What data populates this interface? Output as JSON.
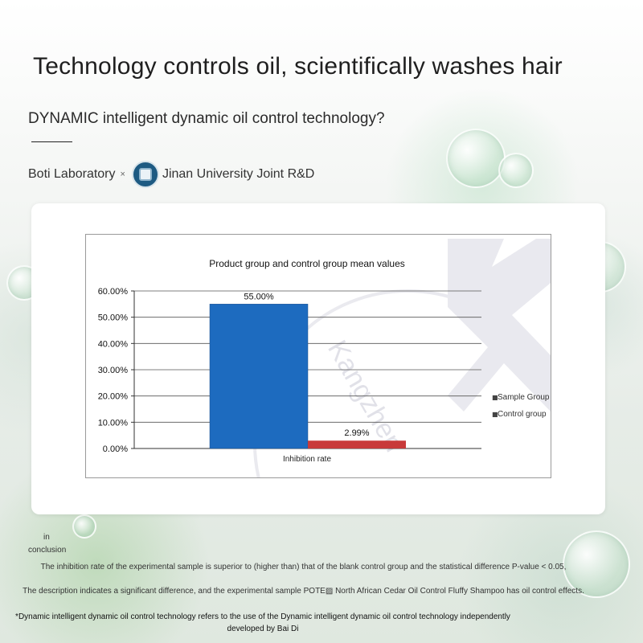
{
  "header": {
    "title": "Technology controls oil, scientifically washes hair",
    "subtitle": "DYNAMIC intelligent dynamic oil control technology?"
  },
  "lab": {
    "left": "Boti Laboratory",
    "separator": "×",
    "right": "Jinan University Joint R&D"
  },
  "chart_data": {
    "type": "bar",
    "title": "Product group and control group mean values",
    "categories": [
      "Inhibition rate"
    ],
    "series": [
      {
        "name": "Sample Group",
        "values": [
          55.0
        ],
        "color": "#1d6bbf",
        "label": "55.00%"
      },
      {
        "name": "Control group",
        "values": [
          2.99
        ],
        "color": "#c83a3a",
        "label": "2.99%"
      }
    ],
    "yticks": [
      "0.00%",
      "10.00%",
      "20.00%",
      "30.00%",
      "40.00%",
      "50.00%",
      "60.00%"
    ],
    "ylim": [
      0,
      60
    ],
    "grid": true,
    "legend_position": "right",
    "legend_markers": [
      "■",
      "■"
    ],
    "watermark": "Kangzhen"
  },
  "footer": {
    "in": "in",
    "conclusion": "conclusion",
    "line1": "The inhibition rate of the experimental sample is superior to (higher than) that of the blank control group and the statistical difference P-value < 0.05,",
    "line2": "The description indicates a significant difference, and the experimental sample POTE▨ North African Cedar Oil Control Fluffy Shampoo has oil control effects.",
    "note": "*Dynamic intelligent dynamic oil control technology refers to the use of the Dynamic intelligent dynamic oil control technology independently developed by Bai Di"
  }
}
